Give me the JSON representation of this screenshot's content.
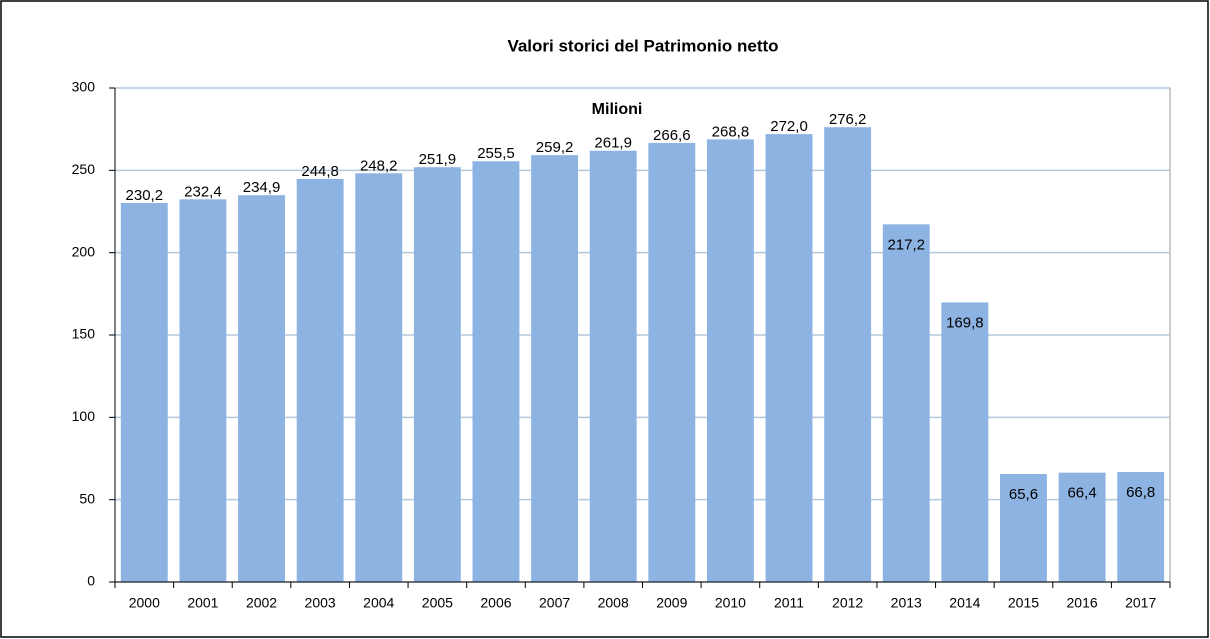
{
  "chart_data": {
    "type": "bar",
    "title": "Valori storici del Patrimonio netto",
    "annotation": "Milioni",
    "categories": [
      "2000",
      "2001",
      "2002",
      "2003",
      "2004",
      "2005",
      "2006",
      "2007",
      "2008",
      "2009",
      "2010",
      "2011",
      "2012",
      "2013",
      "2014",
      "2015",
      "2016",
      "2017"
    ],
    "values": [
      230.2,
      232.4,
      234.9,
      244.8,
      248.2,
      251.9,
      255.5,
      259.2,
      261.9,
      266.6,
      268.8,
      272.0,
      276.2,
      217.2,
      169.8,
      65.6,
      66.4,
      66.8
    ],
    "value_labels": [
      "230,2",
      "232,4",
      "234,9",
      "244,8",
      "248,2",
      "251,9",
      "255,5",
      "259,2",
      "261,9",
      "266,6",
      "268,8",
      "272,0",
      "276,2",
      "217,2",
      "169,8",
      "65,6",
      "66,4",
      "66,8"
    ],
    "color": "#8db3e2",
    "ylim": [
      0,
      300
    ],
    "yticks": [
      0,
      50,
      100,
      150,
      200,
      250,
      300
    ],
    "grid": true
  }
}
